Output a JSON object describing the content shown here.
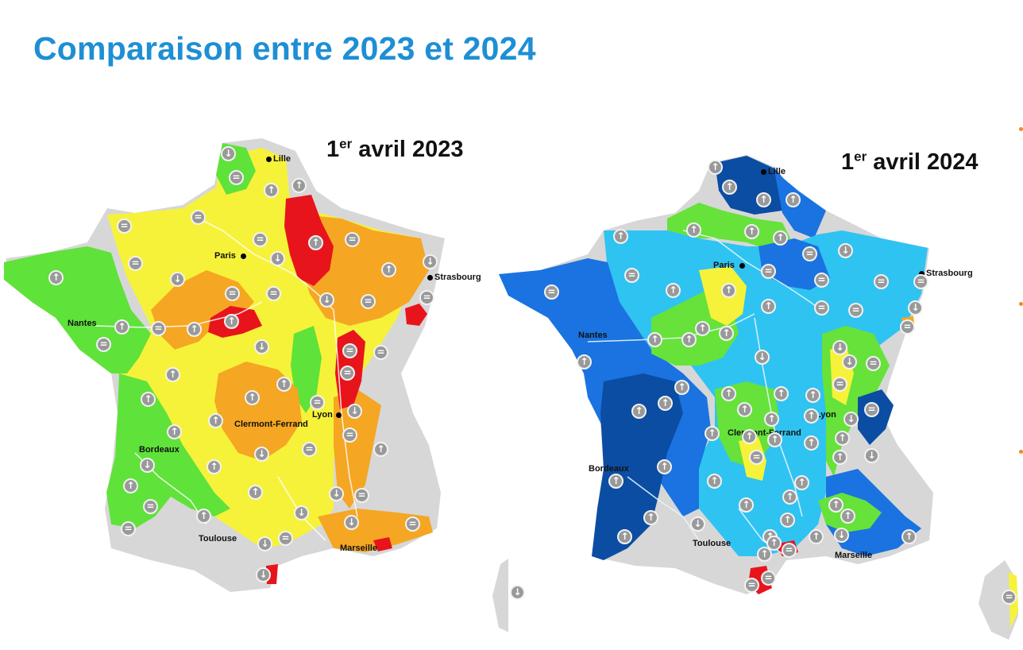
{
  "slide": {
    "title": "Comparaison entre 2023 et 2024"
  },
  "maps": [
    {
      "title_main": "1",
      "title_sup": "er",
      "title_rest": " avril 2023",
      "cities": [
        "Lille",
        "Paris",
        "Strasbourg",
        "Nantes",
        "Clermont-Ferrand",
        "Lyon",
        "Bordeaux",
        "Toulouse",
        "Marseille"
      ]
    },
    {
      "title_main": "1",
      "title_sup": "er",
      "title_rest": " avril 2024",
      "cities": [
        "Lille",
        "Paris",
        "Strasbourg",
        "Nantes",
        "Clermont-Ferrand",
        "Lyon",
        "Bordeaux",
        "Toulouse",
        "Marseille"
      ]
    }
  ],
  "colors": {
    "title": "#1e8fd4",
    "very_low": "#e8141c",
    "low": "#f5a623",
    "moderately_low": "#f6f23a",
    "near_normal": "#66e23a",
    "moderately_high": "#2fc3f2",
    "high": "#1a73e0",
    "very_high": "#0b4da3",
    "no_data": "#d5d5d5"
  },
  "icons": {
    "up": "arrow-up-icon",
    "down": "arrow-down-icon",
    "stable": "equals-icon"
  }
}
